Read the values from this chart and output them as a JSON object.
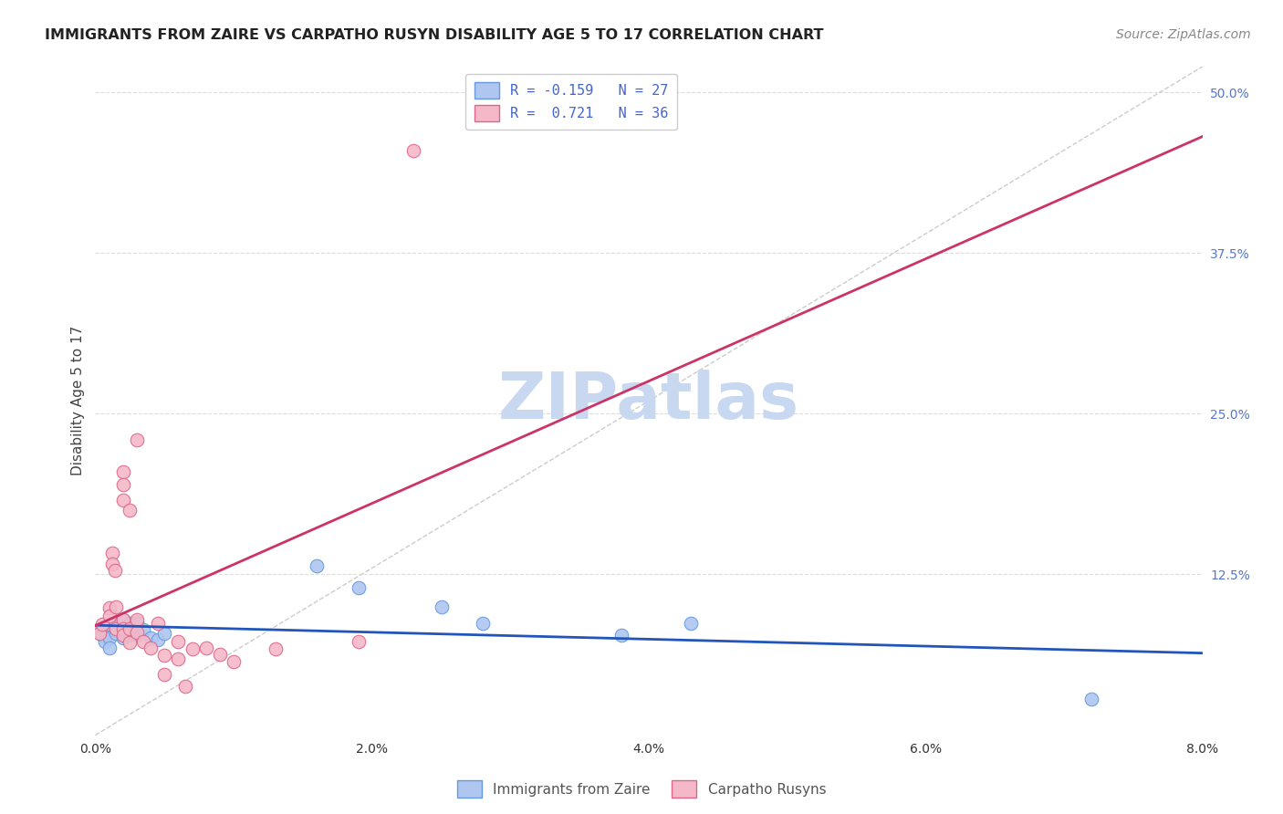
{
  "title": "IMMIGRANTS FROM ZAIRE VS CARPATHO RUSYN DISABILITY AGE 5 TO 17 CORRELATION CHART",
  "source": "Source: ZipAtlas.com",
  "ylabel": "Disability Age 5 to 17",
  "xlim": [
    0.0,
    0.08
  ],
  "ylim": [
    0.0,
    0.52
  ],
  "xticks": [
    0.0,
    0.01,
    0.02,
    0.03,
    0.04,
    0.05,
    0.06,
    0.07,
    0.08
  ],
  "xticklabels": [
    "0.0%",
    "",
    "2.0%",
    "",
    "4.0%",
    "",
    "6.0%",
    "",
    "8.0%"
  ],
  "ytick_positions": [
    0.0,
    0.125,
    0.25,
    0.375,
    0.5
  ],
  "ytick_labels": [
    "",
    "12.5%",
    "25.0%",
    "37.5%",
    "50.0%"
  ],
  "legend_label_blue": "R = -0.159   N = 27",
  "legend_label_pink": "R =  0.721   N = 36",
  "bottom_legend_blue": "Immigrants from Zaire",
  "bottom_legend_pink": "Carpatho Rusyns",
  "watermark": "ZIPatlas",
  "blue_scatter": [
    [
      0.0004,
      0.083
    ],
    [
      0.0005,
      0.078
    ],
    [
      0.0007,
      0.073
    ],
    [
      0.001,
      0.086
    ],
    [
      0.001,
      0.076
    ],
    [
      0.001,
      0.068
    ],
    [
      0.0015,
      0.088
    ],
    [
      0.0015,
      0.082
    ],
    [
      0.0015,
      0.079
    ],
    [
      0.002,
      0.09
    ],
    [
      0.002,
      0.083
    ],
    [
      0.002,
      0.076
    ],
    [
      0.0025,
      0.087
    ],
    [
      0.0025,
      0.078
    ],
    [
      0.003,
      0.088
    ],
    [
      0.003,
      0.078
    ],
    [
      0.0035,
      0.082
    ],
    [
      0.004,
      0.076
    ],
    [
      0.0045,
      0.074
    ],
    [
      0.005,
      0.079
    ],
    [
      0.016,
      0.132
    ],
    [
      0.019,
      0.115
    ],
    [
      0.025,
      0.1
    ],
    [
      0.028,
      0.087
    ],
    [
      0.038,
      0.078
    ],
    [
      0.043,
      0.087
    ],
    [
      0.072,
      0.028
    ]
  ],
  "pink_scatter": [
    [
      0.0003,
      0.079
    ],
    [
      0.0005,
      0.086
    ],
    [
      0.001,
      0.099
    ],
    [
      0.001,
      0.093
    ],
    [
      0.0012,
      0.142
    ],
    [
      0.0012,
      0.133
    ],
    [
      0.0014,
      0.128
    ],
    [
      0.0015,
      0.1
    ],
    [
      0.0015,
      0.083
    ],
    [
      0.002,
      0.205
    ],
    [
      0.002,
      0.195
    ],
    [
      0.002,
      0.183
    ],
    [
      0.002,
      0.09
    ],
    [
      0.002,
      0.083
    ],
    [
      0.002,
      0.078
    ],
    [
      0.0025,
      0.175
    ],
    [
      0.0025,
      0.083
    ],
    [
      0.0025,
      0.072
    ],
    [
      0.003,
      0.23
    ],
    [
      0.003,
      0.09
    ],
    [
      0.003,
      0.08
    ],
    [
      0.0035,
      0.073
    ],
    [
      0.004,
      0.068
    ],
    [
      0.0045,
      0.087
    ],
    [
      0.005,
      0.062
    ],
    [
      0.005,
      0.047
    ],
    [
      0.006,
      0.073
    ],
    [
      0.006,
      0.059
    ],
    [
      0.0065,
      0.038
    ],
    [
      0.007,
      0.067
    ],
    [
      0.008,
      0.068
    ],
    [
      0.009,
      0.063
    ],
    [
      0.01,
      0.057
    ],
    [
      0.013,
      0.067
    ],
    [
      0.019,
      0.073
    ],
    [
      0.023,
      0.455
    ]
  ],
  "scatter_size": 110,
  "blue_color": "#aec6f0",
  "blue_edge": "#6699dd",
  "pink_color": "#f4b8c8",
  "pink_edge": "#dd6688",
  "blue_line_color": "#2255bb",
  "pink_line_color": "#cc3366",
  "diagonal_color": "#cccccc",
  "grid_color": "#dddddd",
  "bg_color": "#ffffff",
  "title_fontsize": 11.5,
  "label_fontsize": 11,
  "tick_fontsize": 10,
  "ytick_color": "#5577cc",
  "xtick_color": "#333333",
  "watermark_fontsize": 52,
  "watermark_color": "#c8d8f0",
  "source_fontsize": 10,
  "legend_fontsize": 11
}
